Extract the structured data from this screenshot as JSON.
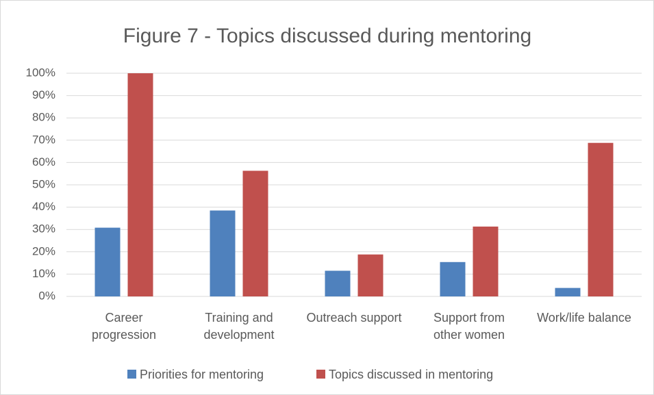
{
  "chart_data": {
    "type": "bar",
    "title": "Figure 7 - Topics discussed during mentoring",
    "categories": [
      "Career progression",
      "Training and development",
      "Outreach support",
      "Support from other women",
      "Work/life balance"
    ],
    "series": [
      {
        "name": "Priorities for mentoring",
        "color": "#4f81bd",
        "values": [
          30.8,
          38.5,
          11.5,
          15.4,
          3.8
        ]
      },
      {
        "name": "Topics discussed in mentoring",
        "color": "#c0504d",
        "values": [
          100,
          56.3,
          18.8,
          31.3,
          68.8
        ]
      }
    ],
    "ylim": [
      0,
      100
    ],
    "yticks": [
      {
        "value": 0,
        "label": "0%"
      },
      {
        "value": 10,
        "label": "10%"
      },
      {
        "value": 20,
        "label": "20%"
      },
      {
        "value": 30,
        "label": "30%"
      },
      {
        "value": 40,
        "label": "40%"
      },
      {
        "value": 50,
        "label": "50%"
      },
      {
        "value": 60,
        "label": "60%"
      },
      {
        "value": 70,
        "label": "70%"
      },
      {
        "value": 80,
        "label": "80%"
      },
      {
        "value": 90,
        "label": "90%"
      },
      {
        "value": 100,
        "label": "100%"
      }
    ],
    "grid": true,
    "legend": "bottom"
  }
}
